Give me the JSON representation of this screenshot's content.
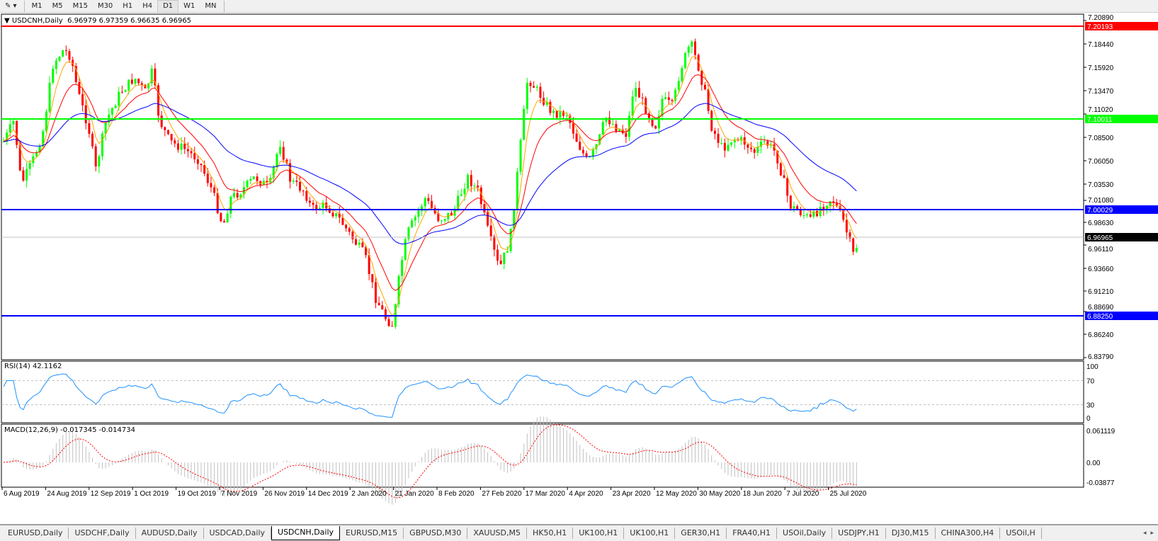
{
  "toolbar": {
    "timeframes": [
      "M1",
      "M5",
      "M15",
      "M30",
      "H1",
      "H4",
      "D1",
      "W1",
      "MN"
    ],
    "active": "D1"
  },
  "main": {
    "title": "USDCNH,Daily",
    "ohlc": "6.96979 6.97359 6.96635 6.96965"
  },
  "price_axis": {
    "ticks": [
      "7.20890",
      "7.18440",
      "7.15920",
      "7.13470",
      "7.11020",
      "7.08500",
      "7.06050",
      "7.03530",
      "7.01080",
      "6.98630",
      "6.96110",
      "6.93660",
      "6.91210",
      "6.88690",
      "6.86240",
      "6.83790"
    ],
    "levels": [
      {
        "value": "7.20193",
        "color": "#ff0000"
      },
      {
        "value": "7.10011",
        "color": "#00ff00"
      },
      {
        "value": "7.00029",
        "color": "#0000ff"
      },
      {
        "value": "6.96965",
        "color": "#000000"
      },
      {
        "value": "6.88250",
        "color": "#0000ff"
      }
    ]
  },
  "rsi": {
    "label": "RSI(14) 42.1162",
    "ticks": [
      "100",
      "70",
      "30",
      "0"
    ]
  },
  "macd": {
    "label": "MACD(12,26,9) -0.017345 -0.014734",
    "ticks": [
      "0.061119",
      "0.00",
      "-0.03877"
    ]
  },
  "date_axis": [
    "6 Aug 2019",
    "24 Aug 2019",
    "12 Sep 2019",
    "1 Oct 2019",
    "19 Oct 2019",
    "7 Nov 2019",
    "26 Nov 2019",
    "14 Dec 2019",
    "2 Jan 2020",
    "21 Jan 2020",
    "8 Feb 2020",
    "27 Feb 2020",
    "17 Mar 2020",
    "4 Apr 2020",
    "23 Apr 2020",
    "12 May 2020",
    "30 May 2020",
    "18 Jun 2020",
    "7 Jul 2020",
    "25 Jul 2020"
  ],
  "tabs": [
    "EURUSD,Daily",
    "USDCHF,Daily",
    "AUDUSD,Daily",
    "USDCAD,Daily",
    "USDCNH,Daily",
    "EURUSD,M15",
    "GBPUSD,M30",
    "XAUUSD,M5",
    "HK50,H1",
    "UK100,H1",
    "UK100,H1",
    "GER30,H1",
    "FRA40,H1",
    "USOil,Daily",
    "USDJPY,H1",
    "DJ30,M15",
    "CHINA300,H4",
    "USOil,H"
  ],
  "active_tab": "USDCNH,Daily",
  "colors": {
    "bull": "#00ff00",
    "bear": "#ff0000",
    "ma_fast": "#ffa500",
    "ma_mid": "#ff0000",
    "ma_slow": "#0000ff",
    "rsi": "#1e90ff",
    "macd_hist": "#c0c0c0",
    "macd_signal": "#ff0000"
  }
}
